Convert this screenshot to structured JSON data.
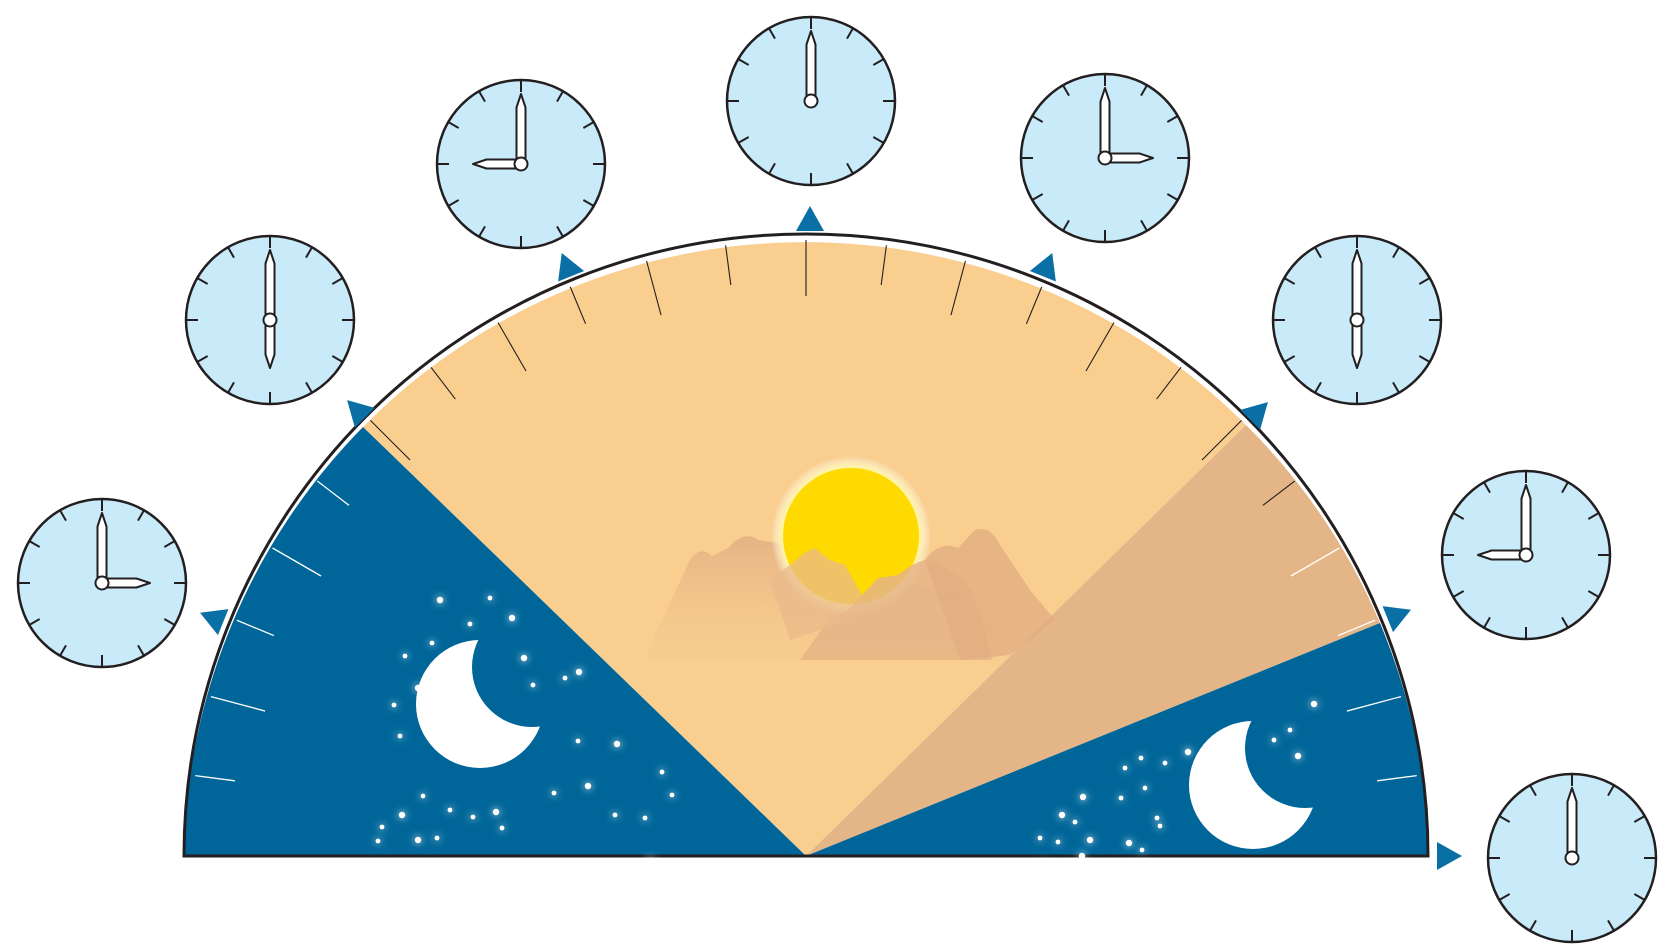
{
  "colors": {
    "night": "#006699",
    "day": "#F9CE8F",
    "dusk": "#E3B587",
    "outline": "#231F20",
    "clock_face": "#C8EAF9",
    "marker": "#0A6FA5",
    "sun": "#FFDA00",
    "mountains": "#E5B486"
  },
  "clocks": [
    {
      "id": "clock-3am",
      "hour": 3,
      "minute": 0
    },
    {
      "id": "clock-6am",
      "hour": 6,
      "minute": 0
    },
    {
      "id": "clock-9am",
      "hour": 9,
      "minute": 0
    },
    {
      "id": "clock-noon",
      "hour": 12,
      "minute": 0
    },
    {
      "id": "clock-3pm",
      "hour": 3,
      "minute": 0
    },
    {
      "id": "clock-6pm",
      "hour": 6,
      "minute": 0
    },
    {
      "id": "clock-9pm",
      "hour": 9,
      "minute": 0
    },
    {
      "id": "clock-midnight",
      "hour": 12,
      "minute": 0
    }
  ],
  "icons": [
    "sun-icon",
    "moon-icon",
    "stars-icon",
    "mountains-icon",
    "clock-icon",
    "triangle-marker-icon"
  ]
}
